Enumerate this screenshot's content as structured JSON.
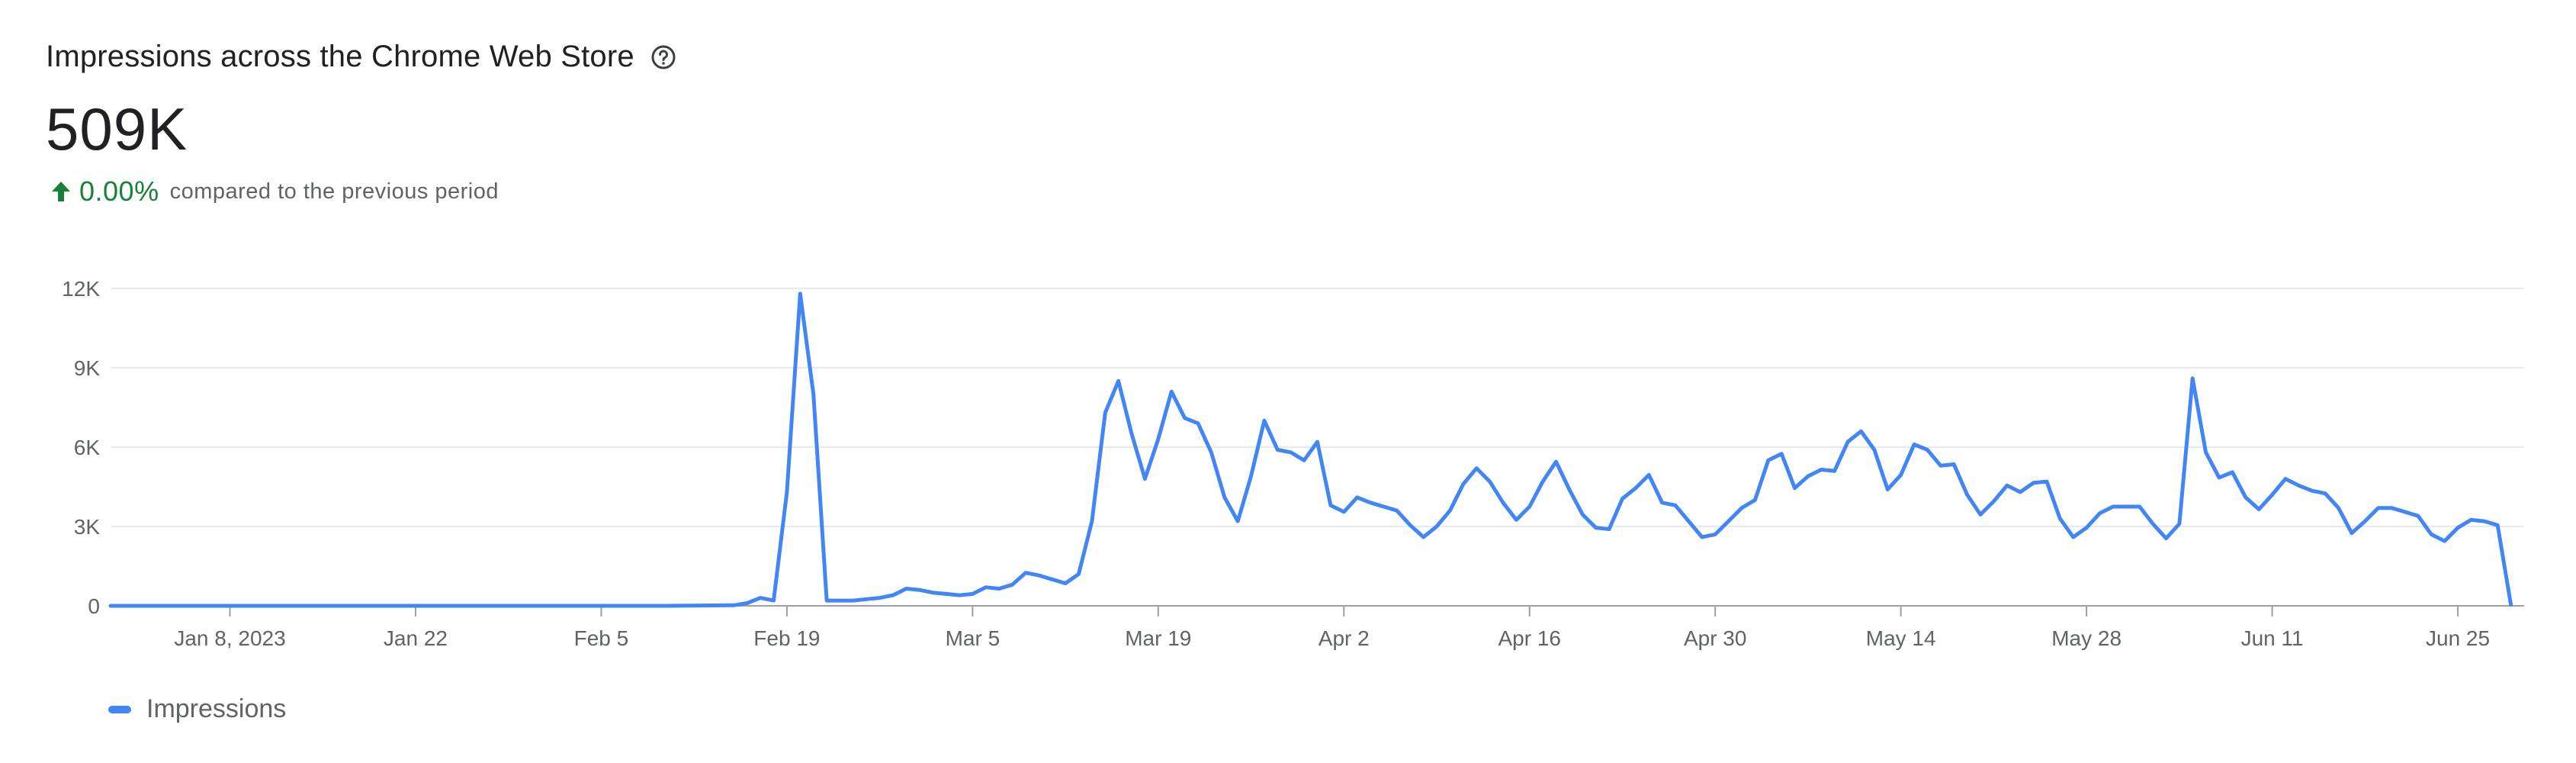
{
  "header": {
    "title": "Impressions across the Chrome Web Store",
    "help_icon": "help-circle-icon",
    "total": "509K",
    "delta_value": "0.00%",
    "delta_text": "compared to the previous period",
    "delta_icon": "arrow-up-icon",
    "delta_color": "#188038"
  },
  "chart_data": {
    "type": "line",
    "ylim": [
      0,
      12000
    ],
    "yticks": [
      0,
      3000,
      6000,
      9000,
      12000
    ],
    "ytick_labels": [
      "0",
      "3K",
      "6K",
      "9K",
      "12K"
    ],
    "xticks": [
      "2023-01-08",
      "2023-01-22",
      "2023-02-05",
      "2023-02-19",
      "2023-03-05",
      "2023-03-19",
      "2023-04-02",
      "2023-04-16",
      "2023-04-30",
      "2023-05-14",
      "2023-05-28",
      "2023-06-11",
      "2023-06-25"
    ],
    "xtick_labels": [
      "Jan 8, 2023",
      "Jan 22",
      "Feb 5",
      "Feb 19",
      "Mar 5",
      "Mar 19",
      "Apr 2",
      "Apr 16",
      "Apr 30",
      "May 14",
      "May 28",
      "Jun 11",
      "Jun 25"
    ],
    "xlim": [
      "2022-12-30",
      "2023-06-30"
    ],
    "grid": true,
    "legend_position": "bottom-left",
    "series": [
      {
        "name": "Impressions",
        "color": "#4285f4",
        "points": [
          [
            "2022-12-30",
            0
          ],
          [
            "2023-01-15",
            0
          ],
          [
            "2023-02-01",
            0
          ],
          [
            "2023-02-10",
            0
          ],
          [
            "2023-02-15",
            20
          ],
          [
            "2023-02-16",
            100
          ],
          [
            "2023-02-17",
            300
          ],
          [
            "2023-02-18",
            200
          ],
          [
            "2023-02-19",
            4300
          ],
          [
            "2023-02-20",
            11800
          ],
          [
            "2023-02-21",
            8000
          ],
          [
            "2023-02-22",
            200
          ],
          [
            "2023-02-23",
            200
          ],
          [
            "2023-02-24",
            200
          ],
          [
            "2023-02-25",
            250
          ],
          [
            "2023-02-26",
            300
          ],
          [
            "2023-02-27",
            400
          ],
          [
            "2023-02-28",
            650
          ],
          [
            "2023-03-01",
            600
          ],
          [
            "2023-03-02",
            500
          ],
          [
            "2023-03-03",
            450
          ],
          [
            "2023-03-04",
            400
          ],
          [
            "2023-03-05",
            450
          ],
          [
            "2023-03-06",
            700
          ],
          [
            "2023-03-07",
            650
          ],
          [
            "2023-03-08",
            800
          ],
          [
            "2023-03-09",
            1250
          ],
          [
            "2023-03-10",
            1150
          ],
          [
            "2023-03-11",
            1000
          ],
          [
            "2023-03-12",
            850
          ],
          [
            "2023-03-13",
            1200
          ],
          [
            "2023-03-14",
            3200
          ],
          [
            "2023-03-15",
            7300
          ],
          [
            "2023-03-16",
            8500
          ],
          [
            "2023-03-17",
            6500
          ],
          [
            "2023-03-18",
            4800
          ],
          [
            "2023-03-19",
            6300
          ],
          [
            "2023-03-20",
            8100
          ],
          [
            "2023-03-21",
            7100
          ],
          [
            "2023-03-22",
            6900
          ],
          [
            "2023-03-23",
            5800
          ],
          [
            "2023-03-24",
            4100
          ],
          [
            "2023-03-25",
            3200
          ],
          [
            "2023-03-26",
            4900
          ],
          [
            "2023-03-27",
            7000
          ],
          [
            "2023-03-28",
            5900
          ],
          [
            "2023-03-29",
            5800
          ],
          [
            "2023-03-30",
            5500
          ],
          [
            "2023-03-31",
            6200
          ],
          [
            "2023-04-01",
            3800
          ],
          [
            "2023-04-02",
            3550
          ],
          [
            "2023-04-03",
            4100
          ],
          [
            "2023-04-04",
            3900
          ],
          [
            "2023-04-05",
            3750
          ],
          [
            "2023-04-06",
            3600
          ],
          [
            "2023-04-07",
            3050
          ],
          [
            "2023-04-08",
            2600
          ],
          [
            "2023-04-09",
            3000
          ],
          [
            "2023-04-10",
            3600
          ],
          [
            "2023-04-11",
            4600
          ],
          [
            "2023-04-12",
            5200
          ],
          [
            "2023-04-13",
            4700
          ],
          [
            "2023-04-14",
            3900
          ],
          [
            "2023-04-15",
            3250
          ],
          [
            "2023-04-16",
            3750
          ],
          [
            "2023-04-17",
            4700
          ],
          [
            "2023-04-18",
            5450
          ],
          [
            "2023-04-19",
            4400
          ],
          [
            "2023-04-20",
            3450
          ],
          [
            "2023-04-21",
            2950
          ],
          [
            "2023-04-22",
            2900
          ],
          [
            "2023-04-23",
            4050
          ],
          [
            "2023-04-24",
            4450
          ],
          [
            "2023-04-25",
            4950
          ],
          [
            "2023-04-26",
            3900
          ],
          [
            "2023-04-27",
            3800
          ],
          [
            "2023-04-28",
            3200
          ],
          [
            "2023-04-29",
            2600
          ],
          [
            "2023-04-30",
            2700
          ],
          [
            "2023-05-01",
            3200
          ],
          [
            "2023-05-02",
            3700
          ],
          [
            "2023-05-03",
            4000
          ],
          [
            "2023-05-04",
            5500
          ],
          [
            "2023-05-05",
            5750
          ],
          [
            "2023-05-06",
            4450
          ],
          [
            "2023-05-07",
            4900
          ],
          [
            "2023-05-08",
            5150
          ],
          [
            "2023-05-09",
            5100
          ],
          [
            "2023-05-10",
            6200
          ],
          [
            "2023-05-11",
            6600
          ],
          [
            "2023-05-12",
            5900
          ],
          [
            "2023-05-13",
            4400
          ],
          [
            "2023-05-14",
            4950
          ],
          [
            "2023-05-15",
            6100
          ],
          [
            "2023-05-16",
            5900
          ],
          [
            "2023-05-17",
            5300
          ],
          [
            "2023-05-18",
            5350
          ],
          [
            "2023-05-19",
            4200
          ],
          [
            "2023-05-20",
            3450
          ],
          [
            "2023-05-21",
            3950
          ],
          [
            "2023-05-22",
            4550
          ],
          [
            "2023-05-23",
            4300
          ],
          [
            "2023-05-24",
            4650
          ],
          [
            "2023-05-25",
            4700
          ],
          [
            "2023-05-26",
            3300
          ],
          [
            "2023-05-27",
            2600
          ],
          [
            "2023-05-28",
            2950
          ],
          [
            "2023-05-29",
            3500
          ],
          [
            "2023-05-30",
            3750
          ],
          [
            "2023-05-31",
            3750
          ],
          [
            "2023-06-01",
            3750
          ],
          [
            "2023-06-02",
            3100
          ],
          [
            "2023-06-03",
            2550
          ],
          [
            "2023-06-04",
            3100
          ],
          [
            "2023-06-05",
            8600
          ],
          [
            "2023-06-06",
            5800
          ],
          [
            "2023-06-07",
            4850
          ],
          [
            "2023-06-08",
            5050
          ],
          [
            "2023-06-09",
            4100
          ],
          [
            "2023-06-10",
            3650
          ],
          [
            "2023-06-11",
            4200
          ],
          [
            "2023-06-12",
            4800
          ],
          [
            "2023-06-13",
            4550
          ],
          [
            "2023-06-14",
            4350
          ],
          [
            "2023-06-15",
            4250
          ],
          [
            "2023-06-16",
            3700
          ],
          [
            "2023-06-17",
            2750
          ],
          [
            "2023-06-18",
            3200
          ],
          [
            "2023-06-19",
            3700
          ],
          [
            "2023-06-20",
            3700
          ],
          [
            "2023-06-21",
            3550
          ],
          [
            "2023-06-22",
            3400
          ],
          [
            "2023-06-23",
            2700
          ],
          [
            "2023-06-24",
            2450
          ],
          [
            "2023-06-25",
            2950
          ],
          [
            "2023-06-26",
            3250
          ],
          [
            "2023-06-27",
            3200
          ],
          [
            "2023-06-28",
            3050
          ],
          [
            "2023-06-29",
            50
          ]
        ]
      }
    ]
  }
}
